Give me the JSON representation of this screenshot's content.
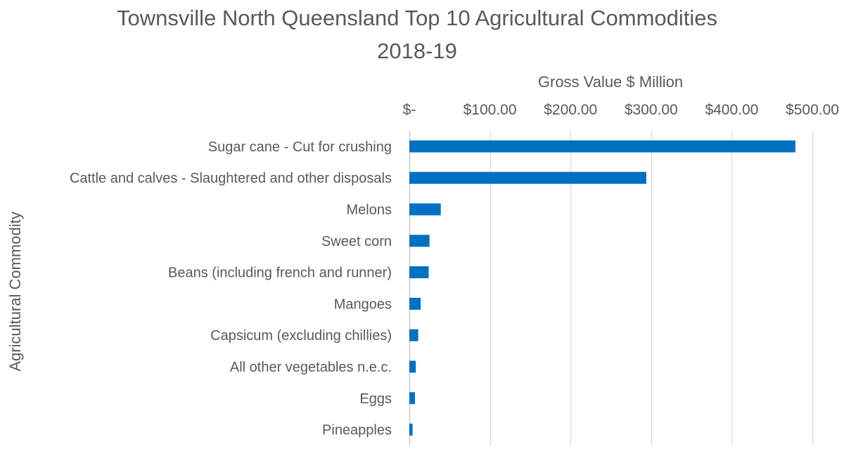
{
  "chart_data": {
    "type": "bar",
    "orientation": "horizontal",
    "title_line1": "Townsville North Queensland Top 10 Agricultural Commodities",
    "title_line2": "2018-19",
    "xlabel": "Gross Value $ Million",
    "ylabel": "Agricultural Commodity",
    "x_axis_position": "top",
    "xlim": [
      0,
      500
    ],
    "x_ticks": [
      0,
      100,
      200,
      300,
      400,
      500
    ],
    "x_tick_labels": [
      "$-",
      "$100.00",
      "$200.00",
      "$300.00",
      "$400.00",
      "$500.00"
    ],
    "grid": true,
    "legend": "none",
    "bar_color": "#0070C0",
    "categories": [
      "Sugar cane - Cut for crushing",
      "Cattle and calves - Slaughtered and other disposals",
      "Melons",
      "Sweet corn",
      "Beans (including french and runner)",
      "Mangoes",
      "Capsicum (excluding chillies)",
      "All other vegetables n.e.c.",
      "Eggs",
      "Pineapples"
    ],
    "values": [
      479,
      294,
      39,
      25,
      24,
      14,
      11,
      8,
      7,
      4
    ]
  }
}
